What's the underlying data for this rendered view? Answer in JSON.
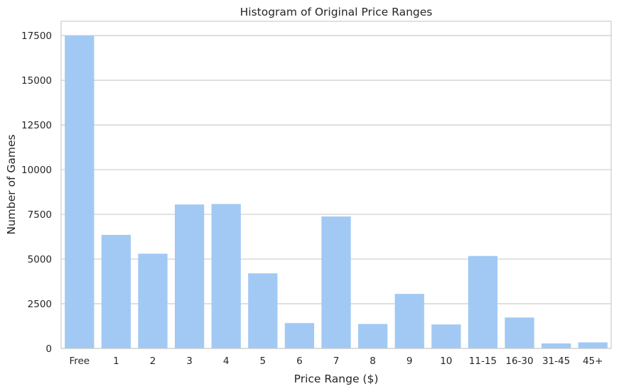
{
  "chart_data": {
    "type": "bar",
    "title": "Histogram of Original Price Ranges",
    "xlabel": "Price Range ($)",
    "ylabel": "Number of Games",
    "categories": [
      "Free",
      "1",
      "2",
      "3",
      "4",
      "5",
      "6",
      "7",
      "8",
      "9",
      "10",
      "11-15",
      "16-30",
      "31-45",
      "45+"
    ],
    "values": [
      17500,
      6350,
      5300,
      8050,
      8080,
      4200,
      1420,
      7380,
      1370,
      3050,
      1340,
      5170,
      1730,
      280,
      340
    ],
    "ylim": [
      0,
      18300
    ],
    "yticks": [
      0,
      2500,
      5000,
      7500,
      10000,
      12500,
      15000,
      17500
    ],
    "grid": "horizontal",
    "bar_color": "#a1c9f4",
    "grid_color": "#cccccc"
  }
}
